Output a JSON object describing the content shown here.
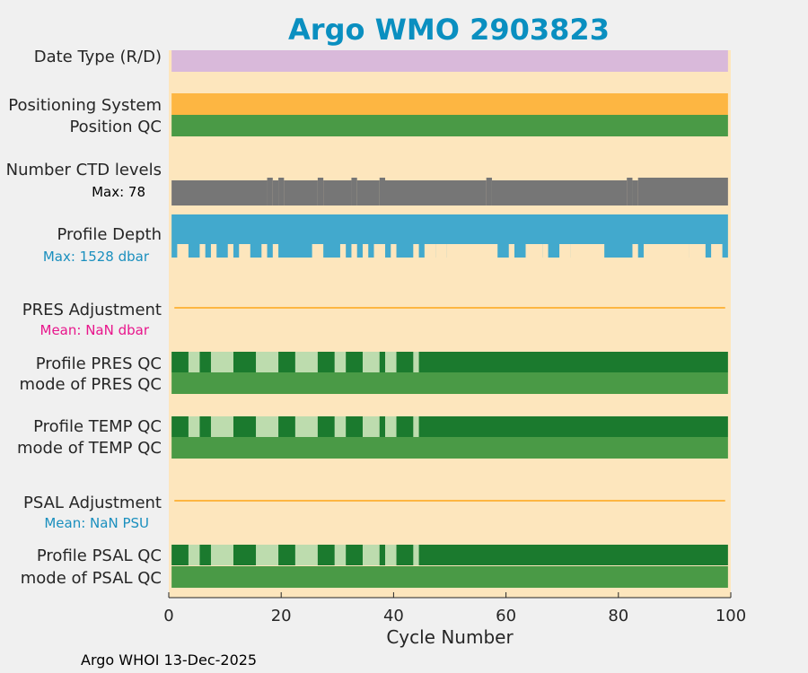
{
  "chart_data": {
    "type": "bar",
    "title": "Argo WMO 2903823",
    "xlabel": "Cycle Number",
    "xlim": [
      0,
      100
    ],
    "xticks": [
      0,
      20,
      40,
      60,
      80,
      100
    ],
    "grid": false,
    "footer": "Argo WHOI 13-Dec-2025",
    "colors": {
      "title": "#0a8fc0",
      "background": "#fde6bd",
      "date_type": "#d9b9da",
      "positioning": "#fdb642",
      "qc_good": "#1b7a2e",
      "qc_mode": "#4a9a46",
      "qc_light": "#bddcae",
      "ctd": "#767676",
      "depth": "#42a9cd",
      "depth_text": "#1a8fbe",
      "adjustment_line": "#fdb642",
      "pres_mean_text": "#e8168c",
      "psal_mean_text": "#1a8fbe"
    },
    "rows": {
      "date_type": "Date Type (R/D)",
      "positioning": "Positioning System",
      "position_qc": "Position QC",
      "ctd": "Number CTD levels",
      "ctd_max": "Max: 78",
      "depth": "Profile Depth",
      "depth_max": "Max: 1528 dbar",
      "pres_adj": "PRES Adjustment",
      "pres_mean": "Mean:  NaN dbar",
      "pres_qc": "Profile PRES QC",
      "pres_mode": "mode of PRES QC",
      "temp_qc": "Profile TEMP QC",
      "temp_mode": "mode of TEMP QC",
      "psal_adj": "PSAL Adjustment",
      "psal_mean": "Mean:  NaN PSU",
      "psal_qc": "Profile PSAL QC",
      "psal_mode": "mode of PSAL QC"
    },
    "cycles": [
      1,
      99
    ],
    "ctd_max_levels": 78,
    "ctd_low_cycles": [
      [
        1,
        17
      ],
      [
        19,
        19
      ],
      [
        21,
        26
      ],
      [
        28,
        32
      ],
      [
        34,
        37
      ],
      [
        39,
        56
      ],
      [
        58,
        81
      ],
      [
        83,
        83
      ]
    ],
    "ctd_high_cycles": [
      [
        18,
        18
      ],
      [
        20,
        20
      ],
      [
        27,
        27
      ],
      [
        33,
        33
      ],
      [
        38,
        38
      ],
      [
        57,
        57
      ],
      [
        82,
        82
      ],
      [
        84,
        99
      ]
    ],
    "depth_max_dbar": 1528,
    "depth_short_cycles": [
      [
        2,
        3
      ],
      [
        6,
        6
      ],
      [
        8,
        8
      ],
      [
        11,
        11
      ],
      [
        13,
        14
      ],
      [
        17,
        17
      ],
      [
        19,
        19
      ],
      [
        26,
        27
      ],
      [
        31,
        31
      ],
      [
        33,
        33
      ],
      [
        35,
        35
      ],
      [
        37,
        38
      ],
      [
        40,
        40
      ],
      [
        44,
        44
      ],
      [
        46,
        47
      ],
      [
        48,
        49
      ],
      [
        50,
        58
      ],
      [
        61,
        61
      ],
      [
        64,
        66
      ],
      [
        67,
        67
      ],
      [
        70,
        71
      ],
      [
        72,
        77
      ],
      [
        83,
        83
      ],
      [
        85,
        92
      ],
      [
        93,
        95
      ],
      [
        97,
        98
      ]
    ],
    "qc_light_cycles": [
      [
        4,
        5
      ],
      [
        8,
        11
      ],
      [
        16,
        19
      ],
      [
        23,
        26
      ],
      [
        30,
        31
      ],
      [
        35,
        37
      ],
      [
        39,
        40
      ],
      [
        44,
        44
      ]
    ],
    "adjustment_mean": "NaN"
  }
}
